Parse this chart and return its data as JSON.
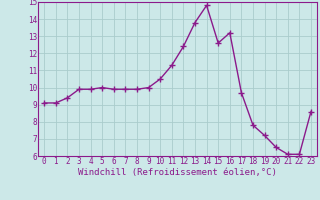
{
  "x": [
    0,
    1,
    2,
    3,
    4,
    5,
    6,
    7,
    8,
    9,
    10,
    11,
    12,
    13,
    14,
    15,
    16,
    17,
    18,
    19,
    20,
    21,
    22,
    23
  ],
  "y": [
    9.1,
    9.1,
    9.4,
    9.9,
    9.9,
    10.0,
    9.9,
    9.9,
    9.9,
    10.0,
    10.5,
    11.3,
    12.4,
    13.8,
    14.8,
    12.6,
    13.2,
    9.7,
    7.8,
    7.2,
    6.5,
    6.1,
    6.1,
    8.6
  ],
  "line_color": "#8b1a8b",
  "marker": "+",
  "marker_size": 4,
  "background_color": "#cce8e8",
  "grid_color": "#aacccc",
  "xlabel": "Windchill (Refroidissement éolien,°C)",
  "xlabel_color": "#8b1a8b",
  "tick_color": "#8b1a8b",
  "ylim": [
    6,
    15
  ],
  "xlim": [
    -0.5,
    23.5
  ],
  "yticks": [
    6,
    7,
    8,
    9,
    10,
    11,
    12,
    13,
    14,
    15
  ],
  "xticks": [
    0,
    1,
    2,
    3,
    4,
    5,
    6,
    7,
    8,
    9,
    10,
    11,
    12,
    13,
    14,
    15,
    16,
    17,
    18,
    19,
    20,
    21,
    22,
    23
  ],
  "tick_fontsize": 5.5,
  "xlabel_fontsize": 6.5,
  "spine_color": "#8b1a8b",
  "linewidth": 1.0
}
